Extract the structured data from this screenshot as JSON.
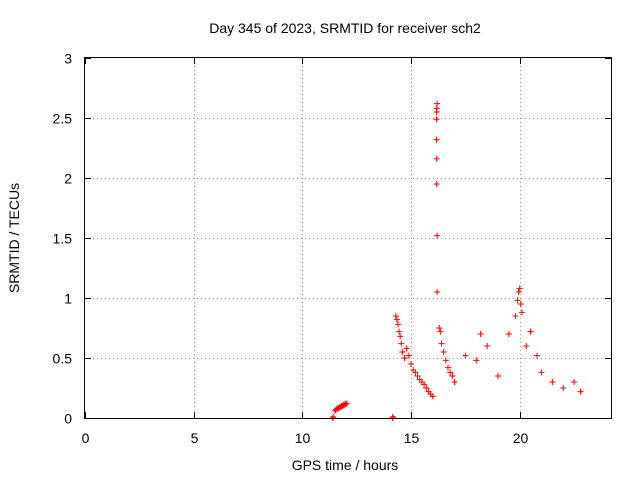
{
  "chart_data": {
    "type": "scatter",
    "title": "Day 345 of 2023, SRMTID for receiver sch2",
    "xlabel": "GPS time / hours",
    "ylabel": "SRMTID / TECUs",
    "xlim": [
      0,
      24.2
    ],
    "ylim": [
      0,
      3
    ],
    "grid": true,
    "x_ticks": [
      0,
      5,
      10,
      15,
      20
    ],
    "x_tick_labels": [
      "0",
      "5",
      "10",
      "15",
      "20"
    ],
    "y_ticks": [
      0,
      0.5,
      1,
      1.5,
      2,
      2.5,
      3
    ],
    "y_tick_labels": [
      "0",
      "0.5",
      "1",
      "1.5",
      "2",
      "2.5",
      "3"
    ],
    "series": [
      {
        "name": "SRMTID",
        "color": "#ff0000",
        "marker": "plus",
        "points": [
          [
            11.4,
            0.0
          ],
          [
            11.42,
            0.01
          ],
          [
            14.15,
            0.0
          ],
          [
            14.17,
            0.01
          ],
          [
            11.5,
            0.06
          ],
          [
            11.55,
            0.07
          ],
          [
            11.6,
            0.08
          ],
          [
            11.65,
            0.08
          ],
          [
            11.7,
            0.09
          ],
          [
            11.75,
            0.09
          ],
          [
            11.8,
            0.1
          ],
          [
            11.85,
            0.1
          ],
          [
            11.9,
            0.11
          ],
          [
            11.95,
            0.11
          ],
          [
            12.0,
            0.12
          ],
          [
            12.05,
            0.12
          ],
          [
            16.2,
            1.05
          ],
          [
            16.2,
            1.52
          ],
          [
            16.18,
            1.95
          ],
          [
            16.18,
            2.16
          ],
          [
            16.17,
            2.32
          ],
          [
            16.17,
            2.49
          ],
          [
            16.18,
            2.55
          ],
          [
            16.18,
            2.58
          ],
          [
            16.2,
            2.62
          ],
          [
            14.3,
            0.85
          ],
          [
            14.35,
            0.82
          ],
          [
            14.4,
            0.78
          ],
          [
            14.45,
            0.72
          ],
          [
            14.5,
            0.68
          ],
          [
            14.55,
            0.62
          ],
          [
            14.6,
            0.55
          ],
          [
            14.7,
            0.5
          ],
          [
            14.8,
            0.58
          ],
          [
            14.9,
            0.52
          ],
          [
            15.0,
            0.45
          ],
          [
            15.1,
            0.4
          ],
          [
            15.2,
            0.38
          ],
          [
            15.3,
            0.35
          ],
          [
            15.4,
            0.32
          ],
          [
            15.5,
            0.3
          ],
          [
            15.6,
            0.28
          ],
          [
            15.7,
            0.25
          ],
          [
            15.8,
            0.22
          ],
          [
            15.9,
            0.2
          ],
          [
            16.0,
            0.18
          ],
          [
            16.3,
            0.75
          ],
          [
            16.35,
            0.72
          ],
          [
            16.4,
            0.62
          ],
          [
            16.5,
            0.55
          ],
          [
            16.6,
            0.48
          ],
          [
            16.7,
            0.42
          ],
          [
            16.8,
            0.38
          ],
          [
            16.9,
            0.35
          ],
          [
            17.0,
            0.3
          ],
          [
            17.5,
            0.52
          ],
          [
            18.0,
            0.48
          ],
          [
            18.2,
            0.7
          ],
          [
            18.5,
            0.6
          ],
          [
            19.0,
            0.35
          ],
          [
            19.5,
            0.7
          ],
          [
            19.8,
            0.85
          ],
          [
            19.9,
            0.98
          ],
          [
            19.95,
            1.05
          ],
          [
            20.0,
            1.08
          ],
          [
            20.05,
            0.95
          ],
          [
            20.1,
            0.88
          ],
          [
            20.3,
            0.6
          ],
          [
            20.5,
            0.72
          ],
          [
            20.8,
            0.52
          ],
          [
            21.0,
            0.38
          ],
          [
            21.5,
            0.3
          ],
          [
            22.0,
            0.25
          ],
          [
            22.5,
            0.3
          ],
          [
            22.8,
            0.22
          ]
        ]
      }
    ]
  }
}
